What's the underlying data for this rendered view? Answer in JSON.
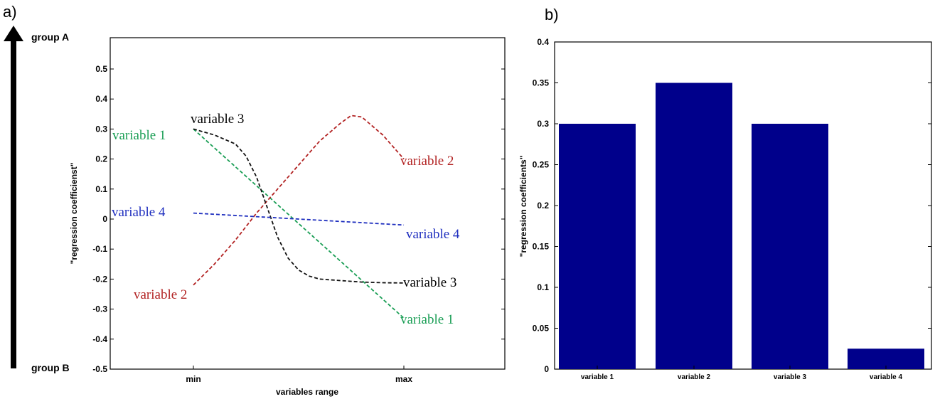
{
  "panels": {
    "a": "a)",
    "b": "b)"
  },
  "group_labels": {
    "top": "group A",
    "bottom": "group B"
  },
  "chart_data": [
    {
      "type": "line",
      "xlabel": "variables range",
      "ylabel": "\"regression coefficienst\"",
      "xtick_labels": [
        "min",
        "max"
      ],
      "ylim": [
        -0.5,
        0.5
      ],
      "yticks": [
        "-0.5",
        "-0.4",
        "-0.3",
        "-0.2",
        "-0.1",
        "0",
        "0.1",
        "0.2",
        "0.3",
        "0.4",
        "0.5"
      ],
      "grid": false,
      "series": [
        {
          "name": "variable 1",
          "color": "#1a9e55",
          "style": "dashed",
          "x": [
            0,
            1
          ],
          "y": [
            0.3,
            -0.33
          ],
          "start_label": "variable 1",
          "end_label": "variable 1"
        },
        {
          "name": "variable 2",
          "color": "#b22222",
          "style": "dashed",
          "x": [
            0,
            0.1,
            0.2,
            0.3,
            0.4,
            0.5,
            0.6,
            0.7,
            0.75,
            0.8,
            0.9,
            1.0
          ],
          "y": [
            -0.22,
            -0.15,
            -0.07,
            0.02,
            0.1,
            0.18,
            0.26,
            0.32,
            0.345,
            0.34,
            0.28,
            0.2
          ],
          "start_label": "variable 2",
          "end_label": "variable 2"
        },
        {
          "name": "variable 3",
          "color": "#111111",
          "style": "dashed",
          "x": [
            0,
            0.1,
            0.2,
            0.25,
            0.3,
            0.35,
            0.4,
            0.45,
            0.5,
            0.55,
            0.6,
            0.7,
            0.8,
            0.9,
            1.0
          ],
          "y": [
            0.3,
            0.28,
            0.25,
            0.21,
            0.14,
            0.04,
            -0.06,
            -0.13,
            -0.17,
            -0.19,
            -0.2,
            -0.205,
            -0.21,
            -0.212,
            -0.213
          ],
          "start_label": "variable 3",
          "end_label": "variable 3"
        },
        {
          "name": "variable 4",
          "color": "#1f2fbf",
          "style": "dashed",
          "x": [
            0,
            1
          ],
          "y": [
            0.02,
            -0.02
          ],
          "start_label": "variable 4",
          "end_label": "variable 4"
        }
      ]
    },
    {
      "type": "bar",
      "ylabel": "\"regression coefficients\"",
      "categories": [
        "variable 1",
        "variable 2",
        "variable 3",
        "variable 4"
      ],
      "values": [
        0.3,
        0.35,
        0.3,
        0.025
      ],
      "ylim": [
        0,
        0.4
      ],
      "yticks": [
        "0",
        "0.05",
        "0.1",
        "0.15",
        "0.2",
        "0.25",
        "0.3",
        "0.35",
        "0.4"
      ],
      "bar_color": "#00008b",
      "grid": false
    }
  ]
}
